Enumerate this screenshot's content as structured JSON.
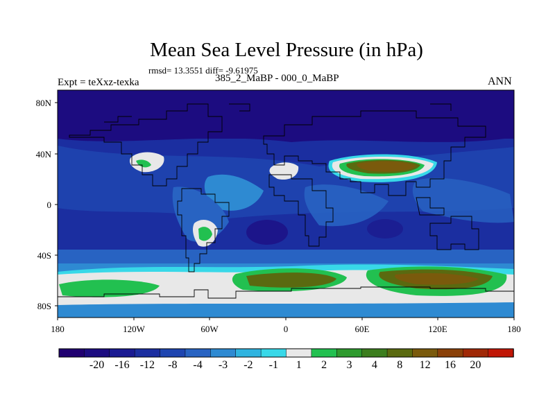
{
  "title": "Mean Sea Level Pressure (in hPa)",
  "stats": "rmsd= 13.3551 diff= -9.61975",
  "expt_label": "Expt = teXxz-texka",
  "comparison": "385_2_MaBP - 000_0_MaBP",
  "season": "ANN",
  "lat_ticks": [
    "80N",
    "40N",
    "0",
    "40S",
    "80S"
  ],
  "lon_ticks": [
    "180",
    "120W",
    "60W",
    "0",
    "60E",
    "120E",
    "180"
  ],
  "colorbar": {
    "labels": [
      "-20",
      "-16",
      "-12",
      "-8",
      "-4",
      "-3",
      "-2",
      "-1",
      "1",
      "2",
      "3",
      "4",
      "8",
      "12",
      "16",
      "20"
    ],
    "colors": [
      "#200070",
      "#1c0c80",
      "#1a1a92",
      "#1b2ea0",
      "#1e45b0",
      "#2863c2",
      "#2e8ad2",
      "#2fb4e0",
      "#38d8e8",
      "#e8e8e8",
      "#22c050",
      "#2e9a2e",
      "#3c7e1e",
      "#5a6a10",
      "#7a5a0c",
      "#8a4008",
      "#a02806",
      "#c01606"
    ]
  },
  "colors": {
    "ocean_deep": "#1b2ea0",
    "ocean_mid": "#1e45b0",
    "polar_north": "#1c0c80",
    "white_band": "#e8e8e8",
    "green_high": "#22c050",
    "olive_high": "#5a6a10",
    "brown_high": "#7a5a0c"
  }
}
